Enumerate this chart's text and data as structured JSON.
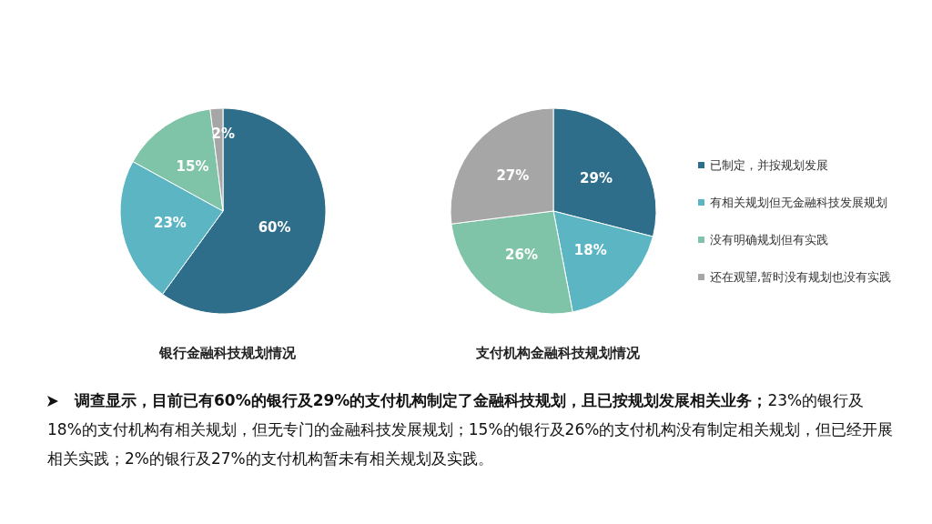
{
  "chart_data": [
    {
      "type": "pie",
      "title": "银行金融科技规划情况",
      "categories": [
        null,
        null,
        null,
        null
      ],
      "values": [
        60,
        23,
        15,
        2
      ],
      "value_labels": [
        "60%",
        "23%",
        "15%",
        "2%"
      ],
      "colors": [
        "#2e6e8a",
        "#5bb5c3",
        "#7fc4a8",
        "#a6a6a6"
      ],
      "legend": false
    },
    {
      "type": "pie",
      "title": "支付机构金融科技规划情况",
      "categories": [
        "已制定，并按规划发展",
        "有相关规划但无金融科技发展规划",
        "没有明确规划但有实践",
        "还在观望,暂时没有规划也没有实践"
      ],
      "values": [
        29,
        18,
        26,
        27
      ],
      "value_labels": [
        "29%",
        "18%",
        "26%",
        "27%"
      ],
      "colors": [
        "#2e6e8a",
        "#5bb5c3",
        "#7fc4a8",
        "#a6a6a6"
      ],
      "legend": "right",
      "annotations": [
        "调查显示，目前已有60%的银行及29%的支付机构制定了金融科技规划，且已按规划发展相关业务；",
        "23%的银行及18%的支付机构有相关规划，但无专门的金融科技发展规划；15%的银行及26%的支付机构没有制定相关规划，但已经开展相关实践；2%的银行及27%的支付机构暂未有相关规划及实践。"
      ]
    }
  ]
}
